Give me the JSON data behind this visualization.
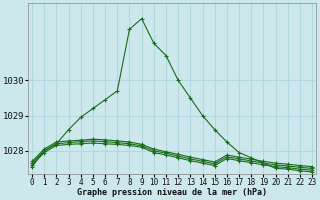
{
  "xlabel": "Graphe pression niveau de la mer (hPa)",
  "background_color": "#cce8ed",
  "grid_color": "#b0d8de",
  "line_color": "#1a6b1a",
  "x_values": [
    0,
    1,
    2,
    3,
    4,
    5,
    6,
    7,
    8,
    9,
    10,
    11,
    12,
    13,
    14,
    15,
    16,
    17,
    18,
    19,
    20,
    21,
    22,
    23
  ],
  "series": [
    [
      1027.6,
      1027.95,
      1028.15,
      1028.18,
      1028.2,
      1028.22,
      1028.2,
      1028.18,
      1028.15,
      1028.1,
      1027.95,
      1027.88,
      1027.8,
      1027.72,
      1027.65,
      1027.58,
      1027.78,
      1027.72,
      1027.66,
      1027.6,
      1027.55,
      1027.52,
      1027.48,
      1027.45
    ],
    [
      1027.65,
      1028.0,
      1028.2,
      1028.23,
      1028.26,
      1028.28,
      1028.26,
      1028.23,
      1028.2,
      1028.14,
      1028.0,
      1027.93,
      1027.85,
      1027.77,
      1027.7,
      1027.63,
      1027.83,
      1027.77,
      1027.71,
      1027.65,
      1027.6,
      1027.57,
      1027.53,
      1027.5
    ],
    [
      1027.7,
      1028.05,
      1028.25,
      1028.28,
      1028.3,
      1028.33,
      1028.31,
      1028.28,
      1028.25,
      1028.18,
      1028.05,
      1027.97,
      1027.9,
      1027.82,
      1027.75,
      1027.68,
      1027.88,
      1027.82,
      1027.76,
      1027.7,
      1027.65,
      1027.62,
      1027.58,
      1027.55
    ],
    [
      1027.55,
      1028.0,
      1028.2,
      1028.6,
      1028.95,
      1029.2,
      1029.45,
      1029.7,
      1031.45,
      1031.75,
      1031.05,
      1030.7,
      1030.0,
      1029.5,
      1029.0,
      1028.6,
      1028.25,
      1027.95,
      1027.8,
      1027.65,
      1027.5,
      1027.48,
      1027.43,
      1027.4
    ]
  ],
  "ylim": [
    1027.35,
    1032.2
  ],
  "yticks": [
    1028,
    1029,
    1030
  ],
  "xlim": [
    -0.3,
    23.3
  ],
  "xticks": [
    0,
    1,
    2,
    3,
    4,
    5,
    6,
    7,
    8,
    9,
    10,
    11,
    12,
    13,
    14,
    15,
    16,
    17,
    18,
    19,
    20,
    21,
    22,
    23
  ],
  "xlabel_fontsize": 6.0,
  "tick_fontsize": 5.5,
  "ytick_fontsize": 6.5
}
